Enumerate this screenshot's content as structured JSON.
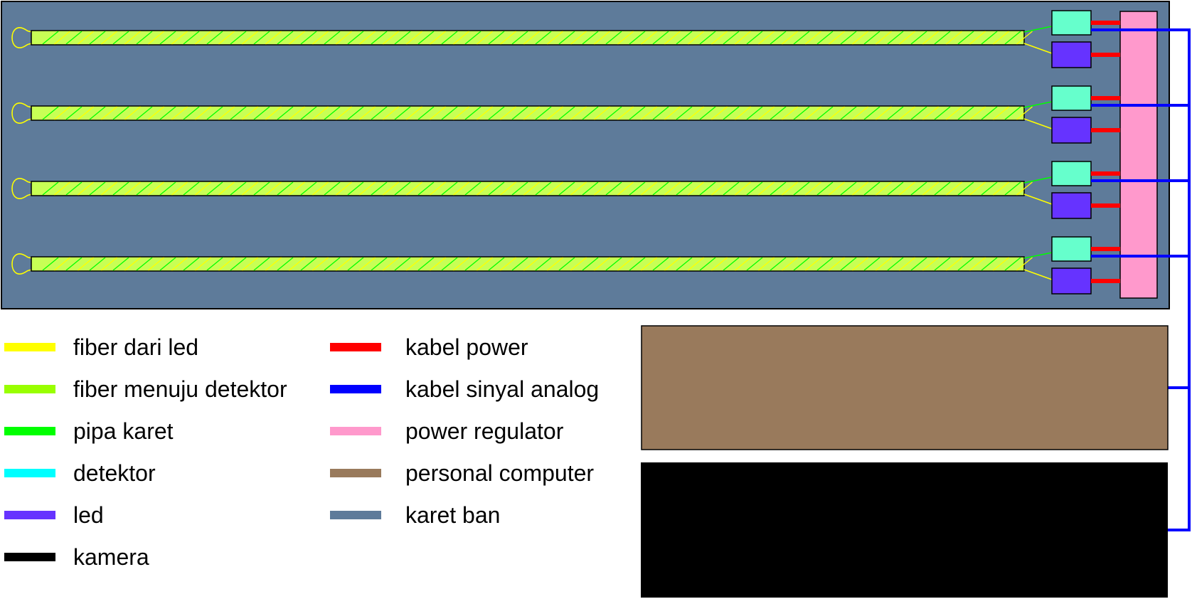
{
  "colors": {
    "background": "#ffffff",
    "fiber_from_led": "#ffff00",
    "fiber_to_detector": "#99ff00",
    "rubber_pipe": "#00ff00",
    "detector": "#00ffff",
    "detector_box": "#66ffcc",
    "led": "#6633ff",
    "camera": "#000000",
    "power_cable": "#ff0000",
    "analog_signal_cable": "#0000ff",
    "power_regulator": "#ff99cc",
    "personal_computer": "#997a5c",
    "rubber_sheet": "#5e7b9a",
    "tube_fill": "#c8ff55",
    "outline": "#000000"
  },
  "sensor_rows": 4,
  "legend": {
    "left": [
      {
        "label": "fiber dari led",
        "color": "#ffff00"
      },
      {
        "label": "fiber menuju detektor",
        "color": "#99ff00"
      },
      {
        "label": "pipa karet",
        "color": "#00ff00"
      },
      {
        "label": "detektor",
        "color": "#00ffff"
      },
      {
        "label": "led",
        "color": "#6633ff"
      },
      {
        "label": "kamera",
        "color": "#000000"
      }
    ],
    "right": [
      {
        "label": "kabel power",
        "color": "#ff0000"
      },
      {
        "label": "kabel sinyal analog",
        "color": "#0000ff"
      },
      {
        "label": "power regulator",
        "color": "#ff99cc"
      },
      {
        "label": "personal computer",
        "color": "#997a5c"
      },
      {
        "label": "karet ban",
        "color": "#5e7b9a"
      }
    ]
  }
}
